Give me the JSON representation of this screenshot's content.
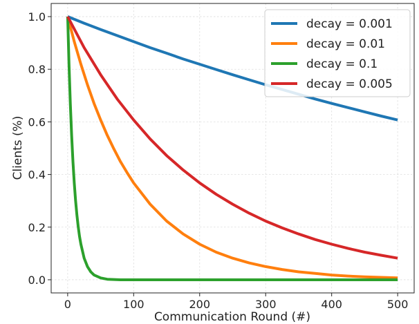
{
  "chart_data": {
    "type": "line",
    "title": "",
    "xlabel": "Communication Round (#)",
    "ylabel": "Clients (%)",
    "xlim": [
      -25,
      525
    ],
    "ylim": [
      -0.05,
      1.05
    ],
    "xticks": [
      0,
      100,
      200,
      300,
      400,
      500
    ],
    "yticks": [
      0.0,
      0.2,
      0.4,
      0.6,
      0.8,
      1.0
    ],
    "xtick_labels": [
      "0",
      "100",
      "200",
      "300",
      "400",
      "500"
    ],
    "ytick_labels": [
      "0.0",
      "0.2",
      "0.4",
      "0.6",
      "0.8",
      "1.0"
    ],
    "grid": true,
    "legend_position": "top-right",
    "series": [
      {
        "name": "decay = 0.001",
        "color": "#1f77b4",
        "x": [
          0,
          25,
          50,
          75,
          100,
          125,
          150,
          175,
          200,
          225,
          250,
          275,
          300,
          325,
          350,
          375,
          400,
          425,
          450,
          475,
          500
        ],
        "y": [
          1.0,
          0.975,
          0.951,
          0.928,
          0.905,
          0.882,
          0.861,
          0.839,
          0.819,
          0.799,
          0.779,
          0.76,
          0.741,
          0.723,
          0.705,
          0.687,
          0.67,
          0.654,
          0.638,
          0.622,
          0.607
        ]
      },
      {
        "name": "decay = 0.01",
        "color": "#ff7f0e",
        "x": [
          0,
          10,
          20,
          30,
          40,
          50,
          60,
          70,
          80,
          90,
          100,
          125,
          150,
          175,
          200,
          225,
          250,
          275,
          300,
          325,
          350,
          375,
          400,
          425,
          450,
          475,
          500
        ],
        "y": [
          1.0,
          0.905,
          0.819,
          0.741,
          0.67,
          0.607,
          0.549,
          0.497,
          0.449,
          0.407,
          0.368,
          0.287,
          0.223,
          0.174,
          0.135,
          0.105,
          0.082,
          0.064,
          0.05,
          0.039,
          0.03,
          0.024,
          0.018,
          0.014,
          0.011,
          0.009,
          0.007
        ]
      },
      {
        "name": "decay = 0.1",
        "color": "#2ca02c",
        "x": [
          0,
          2,
          4,
          6,
          8,
          10,
          12,
          14,
          16,
          18,
          20,
          25,
          30,
          35,
          40,
          50,
          60,
          80,
          100,
          150,
          200,
          250,
          300,
          350,
          400,
          450,
          500
        ],
        "y": [
          1.0,
          0.819,
          0.67,
          0.549,
          0.449,
          0.368,
          0.301,
          0.247,
          0.202,
          0.165,
          0.135,
          0.082,
          0.05,
          0.03,
          0.018,
          0.007,
          0.002,
          0.0,
          0.0,
          0.0,
          0.0,
          0.0,
          0.0,
          0.0,
          0.0,
          0.0,
          0.0
        ]
      },
      {
        "name": "decay = 0.005",
        "color": "#d62728",
        "x": [
          0,
          25,
          50,
          75,
          100,
          125,
          150,
          175,
          200,
          225,
          250,
          275,
          300,
          325,
          350,
          375,
          400,
          425,
          450,
          475,
          500
        ],
        "y": [
          1.0,
          0.882,
          0.779,
          0.687,
          0.607,
          0.535,
          0.472,
          0.417,
          0.368,
          0.325,
          0.287,
          0.253,
          0.223,
          0.197,
          0.174,
          0.153,
          0.135,
          0.119,
          0.105,
          0.093,
          0.082
        ]
      }
    ]
  }
}
